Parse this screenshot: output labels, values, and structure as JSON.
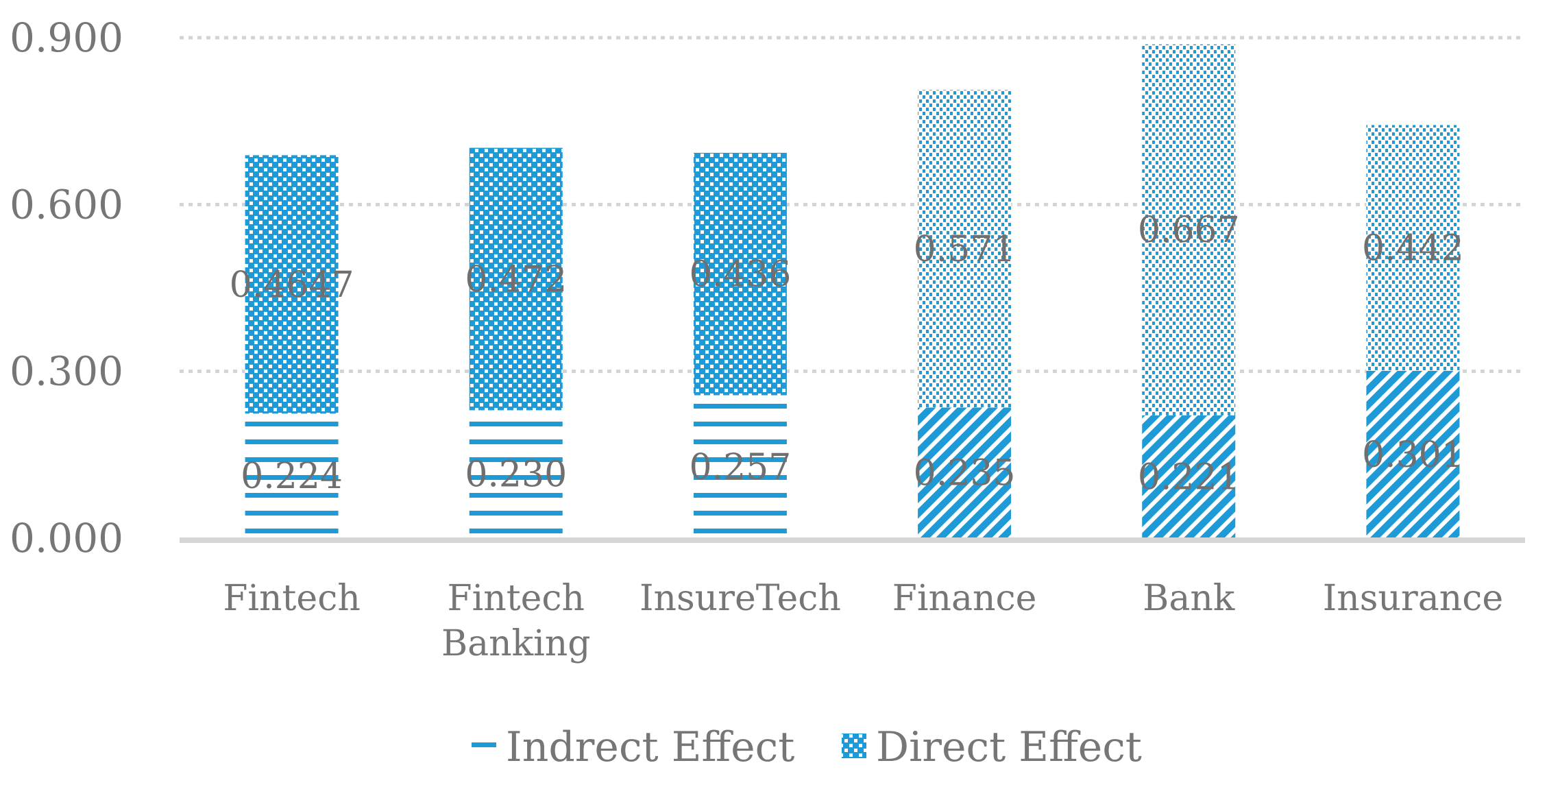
{
  "chart_data": {
    "type": "bar",
    "stacked": true,
    "title": "",
    "xlabel": "",
    "ylabel": "",
    "ylim": [
      0,
      0.9
    ],
    "yticks": [
      "0.000",
      "0.300",
      "0.600",
      "0.900"
    ],
    "grid": true,
    "legend_position": "bottom",
    "categories": [
      [
        "Fintech"
      ],
      [
        "Fintech",
        "Banking"
      ],
      [
        "InsureTech"
      ],
      [
        "Finance"
      ],
      [
        "Bank"
      ],
      [
        "Insurance"
      ]
    ],
    "series": [
      {
        "name": "Indrect Effect",
        "values": [
          0.224,
          0.23,
          0.257,
          0.235,
          0.221,
          0.301
        ],
        "labels": [
          "0.224",
          "0.230",
          "0.257",
          "0.235",
          "0.221",
          "0.301"
        ],
        "patterns": [
          "hstripe",
          "hstripe",
          "hstripe",
          "diag",
          "diag",
          "diag"
        ]
      },
      {
        "name": "Direct Effect",
        "values": [
          0.4647,
          0.472,
          0.436,
          0.571,
          0.667,
          0.442
        ],
        "labels": [
          "0.4647",
          "0.472",
          "0.436",
          "0.571",
          "0.667",
          "0.442"
        ],
        "patterns": [
          "checker",
          "checker",
          "checker",
          "dots",
          "dots",
          "dots"
        ]
      }
    ],
    "colors": {
      "bar": "#1e9ad6",
      "grid": "#d4d4d4",
      "text": "#767676"
    }
  }
}
